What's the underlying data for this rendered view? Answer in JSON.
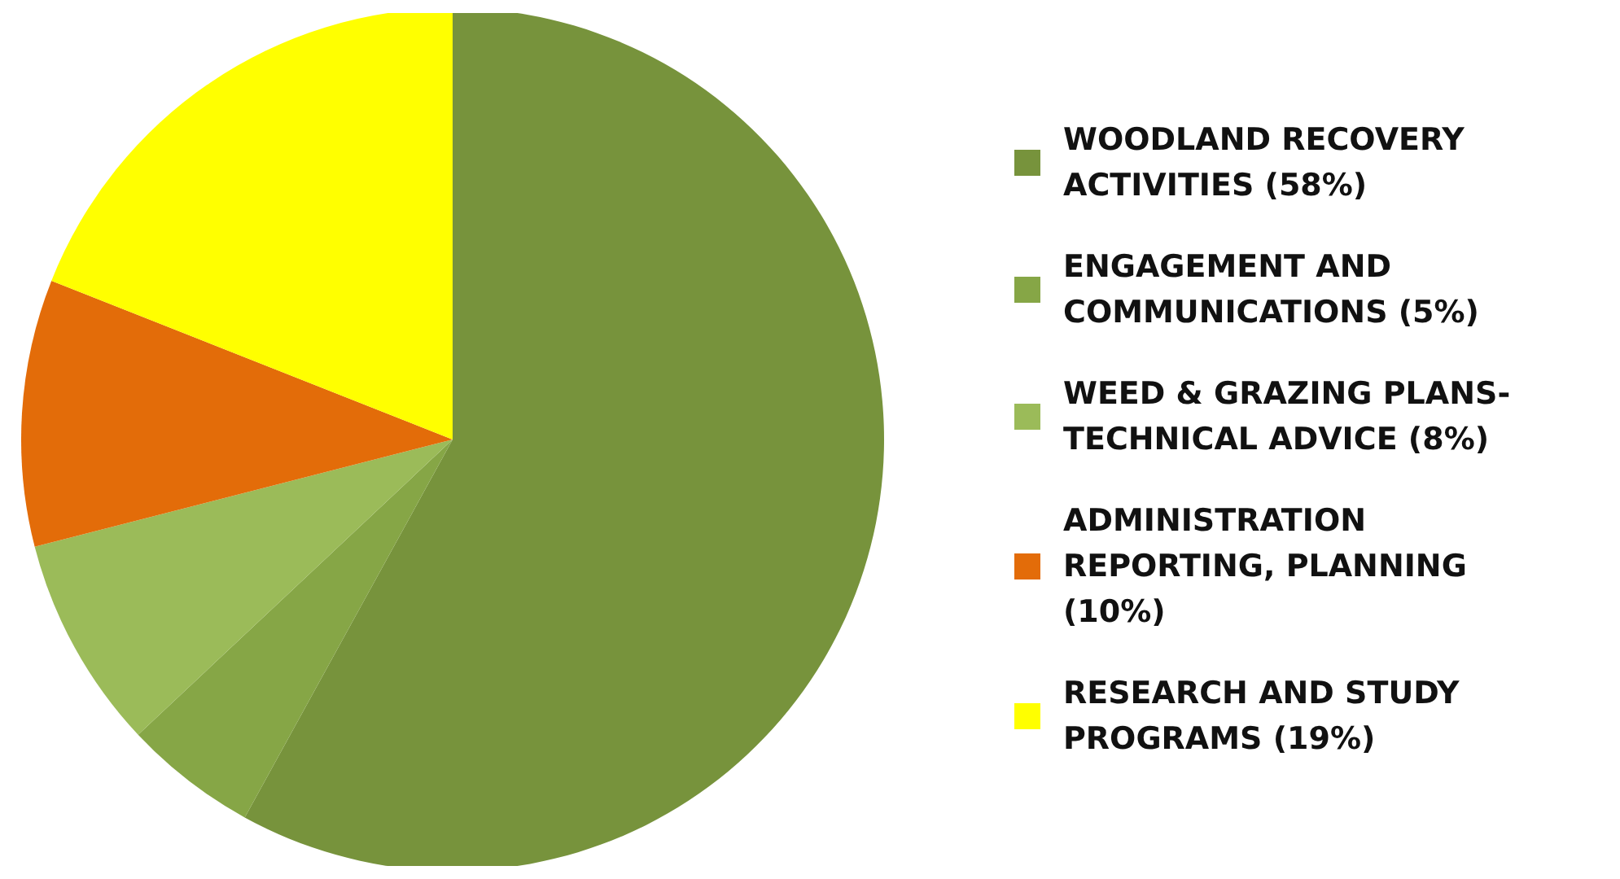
{
  "chart_data": {
    "type": "pie",
    "categories": [
      "WOODLAND RECOVERY ACTIVITIES (58%)",
      "ENGAGEMENT AND COMMUNICATIONS (5%)",
      "WEED & GRAZING PLANS-TECHNICAL ADVICE (8%)",
      "ADMINISTRATION REPORTING, PLANNING (10%)",
      "RESEARCH AND STUDY PROGRAMS (19%)"
    ],
    "values": [
      58,
      5,
      8,
      10,
      19
    ],
    "colors": [
      "#77933c",
      "#86a646",
      "#9bbb59",
      "#e36c09",
      "#ffff00"
    ],
    "legend": "right"
  }
}
